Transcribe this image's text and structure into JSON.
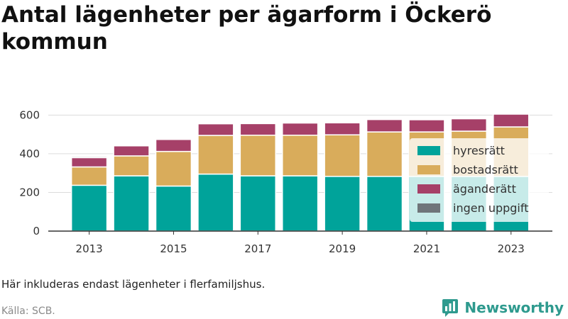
{
  "title": "Antal lägenheter per ägarform i Öckerö kommun",
  "note": "Här inkluderas endast lägenheter i flerfamiljshus.",
  "source": "Källa: SCB.",
  "brand": {
    "name": "Newsworthy",
    "icon": "newsworthy-logo-icon",
    "color": "#2e9a8e"
  },
  "chart_data": {
    "type": "bar",
    "stacked": true,
    "categories": [
      "2013",
      "2014",
      "2015",
      "2016",
      "2017",
      "2018",
      "2019",
      "2020",
      "2021",
      "2022",
      "2023"
    ],
    "x_tick_labels": [
      "2013",
      "2015",
      "2017",
      "2019",
      "2021",
      "2023"
    ],
    "y_ticks": [
      0,
      200,
      400,
      600
    ],
    "ylim": [
      0,
      660
    ],
    "grid": "horizontal",
    "legend_position": "right",
    "series": [
      {
        "name": "hyresrätt",
        "color": "#00a39a",
        "values": [
          237,
          286,
          233,
          295,
          286,
          286,
          283,
          283,
          283,
          283,
          283
        ]
      },
      {
        "name": "bostadsrätt",
        "color": "#d9ac5b",
        "values": [
          95,
          103,
          179,
          200,
          210,
          210,
          215,
          230,
          230,
          234,
          256
        ]
      },
      {
        "name": "äganderätt",
        "color": "#a64068",
        "values": [
          48,
          52,
          62,
          60,
          60,
          63,
          62,
          64,
          63,
          64,
          66
        ]
      },
      {
        "name": "ingen uppgift",
        "color": "#6f757a",
        "values": [
          6,
          0,
          0,
          0,
          0,
          0,
          0,
          0,
          0,
          0,
          0
        ]
      }
    ]
  }
}
